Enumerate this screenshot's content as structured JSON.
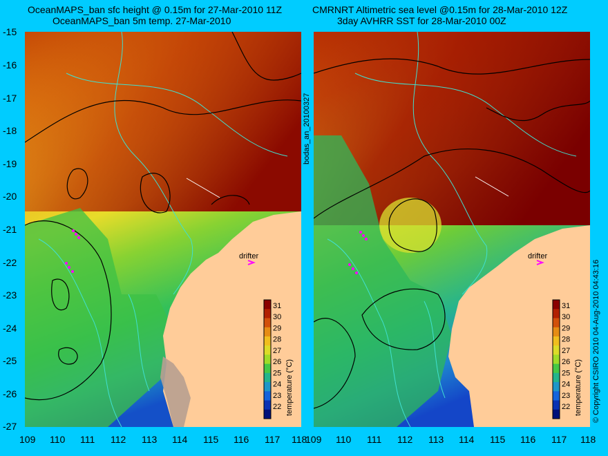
{
  "left_panel": {
    "title_line1": "OceanMAPS_ban sfc height @ 0.15m for 27-Mar-2010 11Z",
    "title_line2": "OceanMAPS_ban 5m temp. 27-Mar-2010",
    "drifter_label": "drifter"
  },
  "right_panel": {
    "title_line1": "CMRNRT Altimetric sea level  @0.15m  for 28-Mar-2010 12Z",
    "title_line2": "3day AVHRR SST for 28-Mar-2010 00Z",
    "drifter_label": "drifter"
  },
  "middle_label": "bodas_an_20100327",
  "copyright": "© Copyright CSIRO 2010   04-Aug-2010 04:43:16",
  "y_axis_labels": [
    "-15",
    "-16",
    "-17",
    "-18",
    "-19",
    "-20",
    "-21",
    "-22",
    "-23",
    "-24",
    "-25",
    "-26",
    "-27"
  ],
  "x_axis_labels": [
    "109",
    "110",
    "111",
    "112",
    "113",
    "114",
    "115",
    "116",
    "117",
    "118"
  ],
  "colorbar": {
    "label": "temperature (°C)",
    "ticks": [
      "31",
      "30",
      "29",
      "28",
      "27",
      "26",
      "25",
      "24",
      "23",
      "22"
    ],
    "colors": [
      "#8b0000",
      "#b22000",
      "#d2500a",
      "#e68c14",
      "#f0be1e",
      "#dcdc28",
      "#a0dc28",
      "#46c846",
      "#23b48c",
      "#1e96c8",
      "#1464dc",
      "#0a32b4",
      "#00107a"
    ]
  },
  "colors": {
    "background": "#00ccff",
    "land": "#ffcc99",
    "coast_contour": "#40e0d0",
    "drifter": "#ff00ff"
  }
}
